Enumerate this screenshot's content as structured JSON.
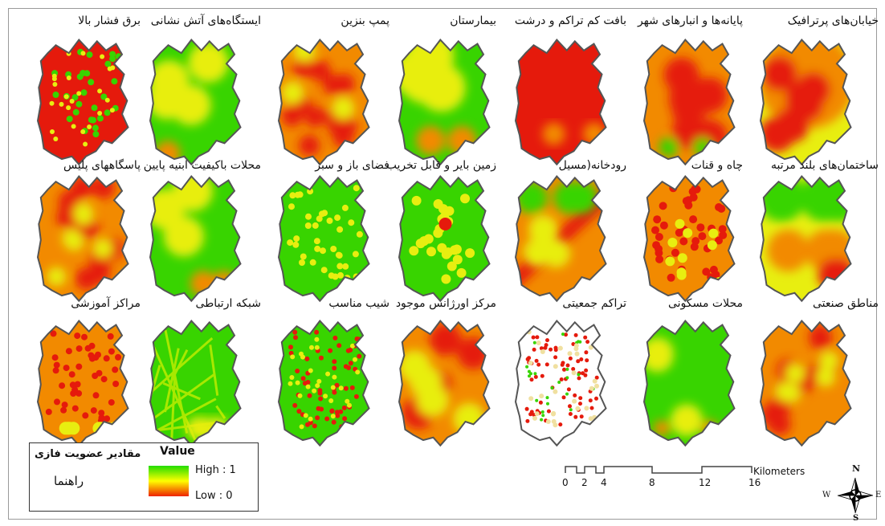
{
  "maps": [
    {
      "label": "خیابان‌های پرترافیک",
      "pattern": "pertrafik"
    },
    {
      "label": "پایانه‌ها و انبارهای شهر",
      "pattern": "payane"
    },
    {
      "label": "بافت کم تراکم و درشت",
      "pattern": "baft"
    },
    {
      "label": "بیمارستان",
      "pattern": "bimarestan"
    },
    {
      "label": "پمپ بنزین",
      "pattern": "pomp"
    },
    {
      "label": "ایستگاه‌های آتش نشانی",
      "pattern": "atash"
    },
    {
      "label": "برق فشار بالا",
      "pattern": "bargh"
    },
    {
      "label": "ساختمان‌های بلند مرتبه",
      "pattern": "boland"
    },
    {
      "label": "چاه و قنات",
      "pattern": "chah"
    },
    {
      "label": "رودخانه(مسیل",
      "pattern": "rood"
    },
    {
      "label": "زمین بایر و قابل تخریب",
      "pattern": "zamin"
    },
    {
      "label": "فضای باز و سبز",
      "pattern": "faza"
    },
    {
      "label": "محلات باکیفیت ابنیه پایین",
      "pattern": "mahalat_abnie"
    },
    {
      "label": "پاسگاههای پلیس",
      "pattern": "police"
    },
    {
      "label": "مناطق صنعتی",
      "pattern": "sanati"
    },
    {
      "label": "محلات مسکونی",
      "pattern": "maskooni"
    },
    {
      "label": "تراکم جمعیتی",
      "pattern": "tarakom"
    },
    {
      "label": "مرکز اورژانس موجود",
      "pattern": "orjans"
    },
    {
      "label": "شیب مناسب",
      "pattern": "shib"
    },
    {
      "label": "شبکه ارتباطی",
      "pattern": "shabake"
    },
    {
      "label": "مراکز آموزشی",
      "pattern": "amoozeshi"
    }
  ],
  "legend": {
    "title": "Value",
    "subtitle": "مقادیر عضویت فازی",
    "name": "راهنما",
    "high_label": "High : 1",
    "low_label": "Low : 0",
    "colors": {
      "high": "#22dd00",
      "mid": "#ffff00",
      "low": "#ee2200"
    }
  },
  "scale_bar": {
    "ticks": [
      "0",
      "2",
      "4",
      "8",
      "12",
      "16"
    ],
    "unit": "Kilometers"
  },
  "north_arrow": {
    "n": "N",
    "s": "S",
    "e": "E",
    "w": "W"
  },
  "colors": {
    "outline": "#555555",
    "red": "#e31a1c",
    "green": "#33cc00",
    "yellow": "#ffff33",
    "orange": "#ff8800"
  }
}
